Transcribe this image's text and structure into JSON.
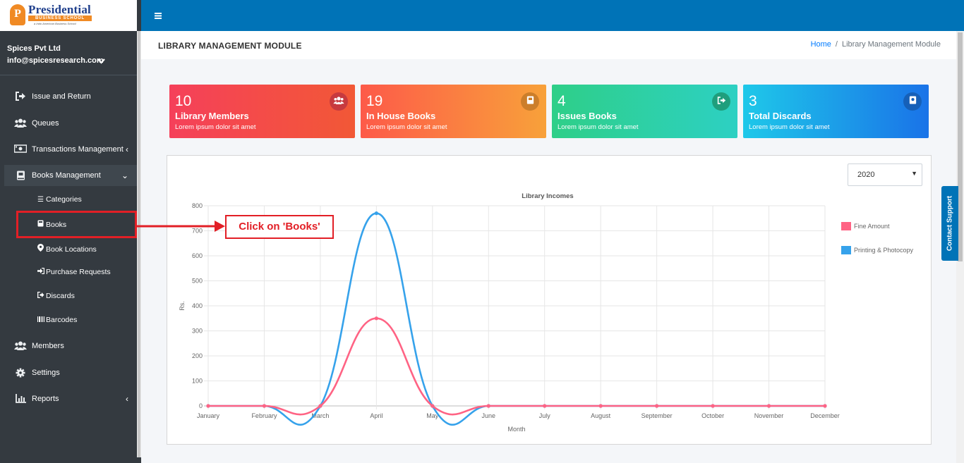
{
  "brand": {
    "logo_letter": "P",
    "logo_title": "Presidential",
    "logo_subtitle": "BUSINESS SCHOOL",
    "logo_tagline": "a Indo American Business School"
  },
  "user": {
    "company": "Spices Pvt Ltd",
    "email": "info@spicesresearch.com"
  },
  "sidebar": {
    "items": [
      {
        "label": "Issue and Return"
      },
      {
        "label": "Queues"
      },
      {
        "label": "Transactions Management"
      },
      {
        "label": "Books Management"
      },
      {
        "label": "Members"
      },
      {
        "label": "Settings"
      },
      {
        "label": "Reports"
      }
    ],
    "sub_items": [
      {
        "label": "Categories"
      },
      {
        "label": "Books"
      },
      {
        "label": "Book Locations"
      },
      {
        "label": "Purchase Requests"
      },
      {
        "label": "Discards"
      },
      {
        "label": "Barcodes"
      }
    ]
  },
  "header": {
    "title": "LIBRARY MANAGEMENT MODULE",
    "breadcrumb_home": "Home",
    "breadcrumb_sep": "/",
    "breadcrumb_current": "Library Management Module"
  },
  "cards": [
    {
      "value": "10",
      "title": "Library Members",
      "subtitle": "Lorem ipsum dolor sit amet",
      "icon": "users-icon"
    },
    {
      "value": "19",
      "title": "In House Books",
      "subtitle": "Lorem ipsum dolor sit amet",
      "icon": "book-icon"
    },
    {
      "value": "4",
      "title": "Issues Books",
      "subtitle": "Lorem ipsum dolor sit amet",
      "icon": "sign-out-icon"
    },
    {
      "value": "3",
      "title": "Total Discards",
      "subtitle": "Lorem ipsum dolor sit amet",
      "icon": "book-discard-icon"
    }
  ],
  "year_select": {
    "value": "2020"
  },
  "annotation": {
    "text": "Click on 'Books'"
  },
  "contact_support": "Contact Support",
  "colors": {
    "sidebar": "#343a40",
    "topbar": "#0073b7",
    "fine_amount": "#ff6384",
    "printing": "#36a2eb",
    "annotation": "#e21f26"
  },
  "chart_data": {
    "type": "line",
    "title": "Library Incomes",
    "xlabel": "Month",
    "ylabel": "Rs.",
    "ylim": [
      0,
      800
    ],
    "yticks": [
      0,
      100,
      200,
      300,
      400,
      500,
      600,
      700,
      800
    ],
    "categories": [
      "January",
      "February",
      "March",
      "April",
      "May",
      "June",
      "July",
      "August",
      "September",
      "October",
      "November",
      "December"
    ],
    "series": [
      {
        "name": "Fine Amount",
        "color": "#ff6384",
        "values": [
          0,
          0,
          0,
          350,
          0,
          0,
          0,
          0,
          0,
          0,
          0,
          0
        ]
      },
      {
        "name": "Printing & Photocopy",
        "color": "#36a2eb",
        "values": [
          0,
          0,
          0,
          770,
          0,
          0,
          0,
          0,
          0,
          0,
          0,
          0
        ]
      }
    ],
    "legend": "right",
    "grid": true
  }
}
